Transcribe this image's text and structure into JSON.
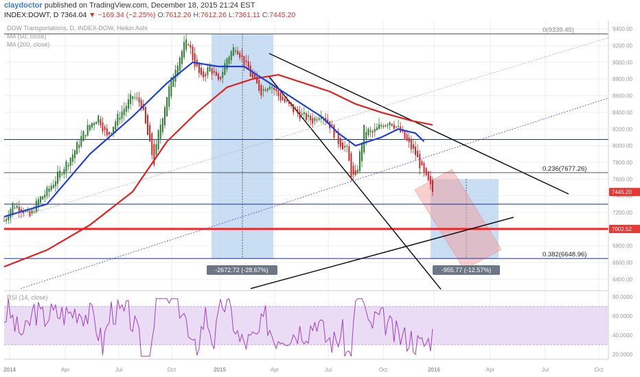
{
  "header": {
    "author": "claydoctor",
    "published": "published on TradingView.com, December 18, 2015 21:24 EST",
    "symbol": "INDEX:DOWT, D",
    "last": "7364.04",
    "change": "−169.34 (−2.25%)",
    "open_label": "O:",
    "open": "7612.26",
    "high_label": "H:",
    "high": "7612.26",
    "low_label": "L:",
    "low": "7361.11",
    "close_label": "C:",
    "close": "7445.20"
  },
  "legend": {
    "title": "DOW Transportations, D, INDEX-DOW, Heikin Ashi",
    "ma50": "MA (50, close)",
    "ma200": "MA (200, close)",
    "rsi": "RSI (14, close)"
  },
  "colors": {
    "up_candle": "#2e7d32",
    "down_candle": "#c62828",
    "ma50": "#1e3fd6",
    "ma200": "#e02020",
    "rsi": "#a23fbf",
    "rsi_band": "#eadcf5",
    "highlight": "#b7d3ee",
    "support": "#ff1f1f",
    "price_badge": "#e53935"
  },
  "chart_data": {
    "type": "candlestick",
    "title": "DOW Transportations, D, INDEX-DOW, Heikin Ashi",
    "y_ticks": [
      "9400.00",
      "9200.00",
      "9000.00",
      "8800.00",
      "8600.00",
      "8400.00",
      "8200.00",
      "8000.00",
      "7800.00",
      "7600.00",
      "7400.00",
      "7200.00",
      "7000.00",
      "6800.00",
      "6600.00",
      "6400.00"
    ],
    "ylim": [
      6280,
      9500
    ],
    "x_ticks": [
      "2014",
      "Apr",
      "Jul",
      "Oct",
      "2015",
      "Apr",
      "Jul",
      "Oct",
      "2016",
      "Apr",
      "Jul",
      "Oct"
    ],
    "last_price": "7445.20",
    "support_price": "7002.52",
    "fib_levels": [
      {
        "label": "0(9339.45)",
        "value": 9339.45
      },
      {
        "label": "0.236(7677.26)",
        "value": 7677.26
      },
      {
        "label": "0.382(6648.96)",
        "value": 6648.96
      }
    ],
    "measurements": [
      {
        "label": "-2672.72 (-28.67%)"
      },
      {
        "label": "-955.77 (-12.57%)"
      }
    ],
    "price_path": [
      [
        0,
        7100
      ],
      [
        4,
        7300
      ],
      [
        8,
        7250
      ],
      [
        12,
        7150
      ],
      [
        16,
        7350
      ],
      [
        20,
        7450
      ],
      [
        24,
        7600
      ],
      [
        28,
        7750
      ],
      [
        32,
        7900
      ],
      [
        36,
        8100
      ],
      [
        40,
        8250
      ],
      [
        44,
        8350
      ],
      [
        48,
        8100
      ],
      [
        52,
        8300
      ],
      [
        56,
        8450
      ],
      [
        60,
        8600
      ],
      [
        64,
        8500
      ],
      [
        68,
        8000
      ],
      [
        70,
        7800
      ],
      [
        72,
        8150
      ],
      [
        76,
        8600
      ],
      [
        80,
        8950
      ],
      [
        84,
        9200
      ],
      [
        86,
        9250
      ],
      [
        88,
        9050
      ],
      [
        92,
        8800
      ],
      [
        96,
        8950
      ],
      [
        100,
        8750
      ],
      [
        104,
        9050
      ],
      [
        108,
        9200
      ],
      [
        112,
        9000
      ],
      [
        116,
        8800
      ],
      [
        120,
        8650
      ],
      [
        124,
        8750
      ],
      [
        128,
        8600
      ],
      [
        132,
        8500
      ],
      [
        136,
        8400
      ],
      [
        140,
        8350
      ],
      [
        144,
        8300
      ],
      [
        148,
        8400
      ],
      [
        152,
        8250
      ],
      [
        156,
        8050
      ],
      [
        160,
        7950
      ],
      [
        162,
        7650
      ],
      [
        164,
        7600
      ],
      [
        168,
        8200
      ],
      [
        172,
        8150
      ],
      [
        176,
        8250
      ],
      [
        180,
        8300
      ],
      [
        184,
        8200
      ],
      [
        188,
        8050
      ],
      [
        192,
        7900
      ],
      [
        196,
        7650
      ],
      [
        200,
        7450
      ]
    ],
    "ma50_path": [
      [
        0,
        7150
      ],
      [
        20,
        7300
      ],
      [
        40,
        7900
      ],
      [
        60,
        8350
      ],
      [
        76,
        8750
      ],
      [
        88,
        9000
      ],
      [
        100,
        8950
      ],
      [
        112,
        8950
      ],
      [
        124,
        8750
      ],
      [
        136,
        8550
      ],
      [
        148,
        8350
      ],
      [
        156,
        8150
      ],
      [
        164,
        8000
      ],
      [
        176,
        8100
      ],
      [
        184,
        8200
      ],
      [
        192,
        8150
      ],
      [
        196,
        8050
      ]
    ],
    "ma200_path": [
      [
        0,
        6550
      ],
      [
        20,
        6750
      ],
      [
        40,
        7050
      ],
      [
        60,
        7450
      ],
      [
        76,
        8050
      ],
      [
        90,
        8400
      ],
      [
        104,
        8700
      ],
      [
        116,
        8800
      ],
      [
        128,
        8850
      ],
      [
        140,
        8750
      ],
      [
        152,
        8650
      ],
      [
        164,
        8500
      ],
      [
        176,
        8400
      ],
      [
        190,
        8300
      ],
      [
        200,
        8250
      ]
    ],
    "rsi": {
      "label": "RSI (14, close)",
      "y_ticks": [
        "80.0000",
        "60.0000",
        "40.0000",
        "20.0000"
      ],
      "ylim": [
        15,
        85
      ],
      "band": [
        30,
        70
      ]
    }
  }
}
